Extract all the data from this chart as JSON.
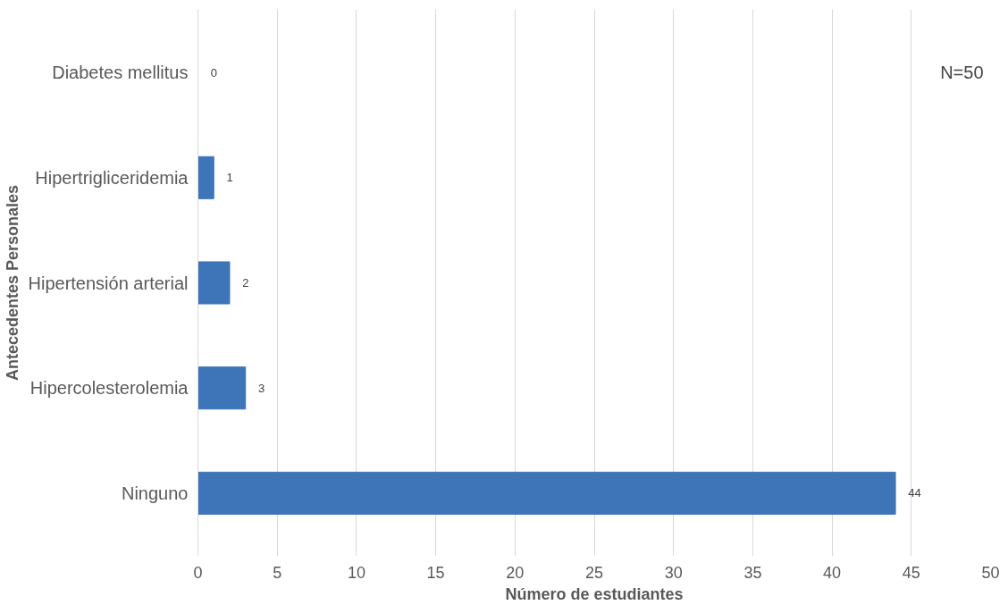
{
  "chart_data": {
    "type": "bar",
    "orientation": "horizontal",
    "xlabel": "Número de estudiantes",
    "ylabel": "Antecedentes Personales",
    "categories": [
      "Diabetes mellitus",
      "Hipertrigliceridemia",
      "Hipertensión arterial",
      "Hipercolesterolemia",
      "Ninguno"
    ],
    "values": [
      0,
      1,
      2,
      3,
      44
    ],
    "color": "#3e74b8",
    "xlim": [
      0,
      50
    ],
    "xticks": [
      0,
      5,
      10,
      15,
      20,
      25,
      30,
      35,
      40,
      45,
      50
    ],
    "grid": "x",
    "data_labels": true,
    "annotations": [
      "N=50"
    ]
  }
}
